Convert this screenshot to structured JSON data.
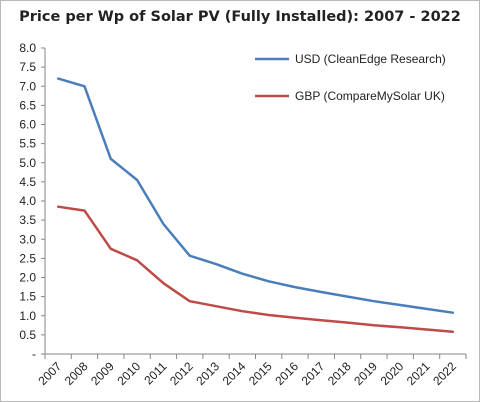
{
  "chart_data": {
    "type": "line",
    "title": "Price per Wp of Solar PV (Fully Installed): 2007 - 2022",
    "xlabel": "",
    "ylabel": "",
    "categories": [
      "2007",
      "2008",
      "2009",
      "2010",
      "2011",
      "2012",
      "2013",
      "2014",
      "2015",
      "2016",
      "2017",
      "2018",
      "2019",
      "2020",
      "2021",
      "2022"
    ],
    "ylim": [
      0,
      8
    ],
    "y_ticks": [
      "-",
      "0.5",
      "1.0",
      "1.5",
      "2.0",
      "2.5",
      "3.0",
      "3.5",
      "4.0",
      "4.5",
      "5.0",
      "5.5",
      "6.0",
      "6.5",
      "7.0",
      "7.5",
      "8.0"
    ],
    "grid": false,
    "legend_position": "top-right",
    "series": [
      {
        "name": "USD (CleanEdge Research)",
        "color": "#4a7ebb",
        "values": [
          7.2,
          7.0,
          5.1,
          4.55,
          3.4,
          2.57,
          2.35,
          2.1,
          1.9,
          1.75,
          1.62,
          1.5,
          1.38,
          1.28,
          1.18,
          1.08
        ]
      },
      {
        "name": "GBP (CompareMySolar UK)",
        "color": "#be4b48",
        "values": [
          3.85,
          3.75,
          2.75,
          2.45,
          1.85,
          1.38,
          1.25,
          1.12,
          1.02,
          0.95,
          0.88,
          0.82,
          0.75,
          0.7,
          0.64,
          0.58
        ]
      }
    ]
  }
}
